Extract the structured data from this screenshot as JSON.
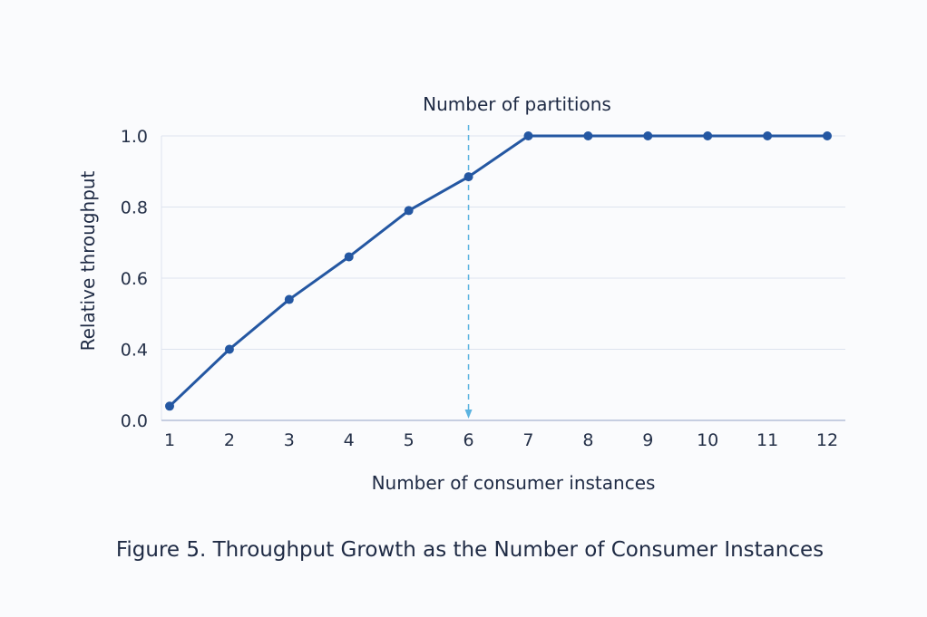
{
  "chart_data": {
    "type": "line",
    "title": "",
    "xlabel": "Number of consumer instances",
    "ylabel": "Relative throughput",
    "x": [
      1,
      2,
      3,
      4,
      5,
      6,
      7,
      8,
      9,
      10,
      11,
      12
    ],
    "series": [
      {
        "name": "Relative throughput",
        "color": "#2457a2",
        "values": [
          0.08,
          0.4,
          0.54,
          0.66,
          0.79,
          0.885,
          1.0,
          1.0,
          1.0,
          1.0,
          1.0,
          1.0
        ]
      }
    ],
    "x_ticks": [
      "1",
      "2",
      "3",
      "4",
      "5",
      "6",
      "7",
      "8",
      "9",
      "10",
      "11",
      "12"
    ],
    "y_ticks": [
      0.0,
      0.4,
      0.6,
      0.8,
      1.0
    ],
    "y_tick_labels": [
      "0.0",
      "0.4",
      "0.6",
      "0.8",
      "1.0"
    ],
    "ylim": [
      0.0,
      1.0
    ],
    "grid": true,
    "annotation": {
      "text": "Number of partitions",
      "x": 6,
      "color": "#5bb3e0",
      "style": "dashed-arrow-down"
    }
  },
  "caption": "Figure 5. Throughput Growth as the Number of Consumer Instances"
}
